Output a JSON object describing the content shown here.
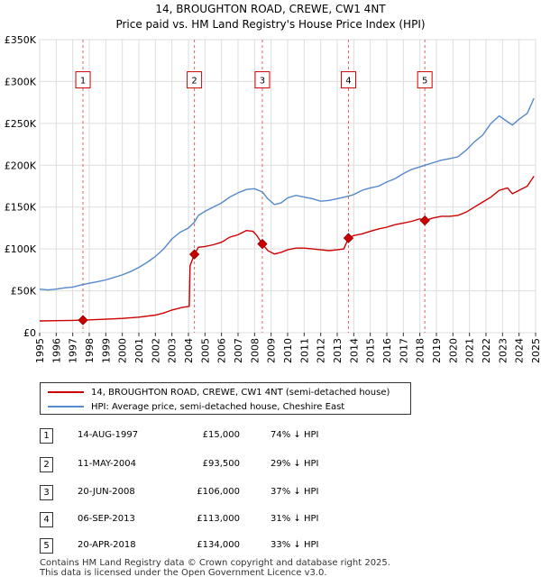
{
  "chart_data": {
    "type": "line",
    "title": "14, BROUGHTON ROAD, CREWE, CW1 4NT",
    "subtitle": "Price paid vs. HM Land Registry's House Price Index (HPI)",
    "xlim": [
      1995,
      2025
    ],
    "ylim": [
      0,
      350000
    ],
    "x_ticks": [
      "1995",
      "1996",
      "1997",
      "1998",
      "1999",
      "2000",
      "2001",
      "2002",
      "2003",
      "2004",
      "2005",
      "2006",
      "2007",
      "2008",
      "2009",
      "2010",
      "2011",
      "2012",
      "2013",
      "2014",
      "2015",
      "2016",
      "2017",
      "2018",
      "2019",
      "2020",
      "2021",
      "2022",
      "2023",
      "2024",
      "2025"
    ],
    "y_ticks": [
      {
        "value": 0,
        "label": "£0"
      },
      {
        "value": 50000,
        "label": "£50K"
      },
      {
        "value": 100000,
        "label": "£100K"
      },
      {
        "value": 150000,
        "label": "£150K"
      },
      {
        "value": 200000,
        "label": "£200K"
      },
      {
        "value": 250000,
        "label": "£250K"
      },
      {
        "value": 300000,
        "label": "£300K"
      },
      {
        "value": 350000,
        "label": "£350K"
      }
    ],
    "series": [
      {
        "name": "14, BROUGHTON ROAD, CREWE, CW1 4NT (semi-detached house)",
        "color": "#cc0000",
        "points": [
          [
            1995.0,
            14000
          ],
          [
            1996.0,
            14300
          ],
          [
            1997.0,
            14700
          ],
          [
            1997.62,
            15000
          ],
          [
            1998.0,
            15300
          ],
          [
            1999.0,
            16000
          ],
          [
            2000.0,
            17000
          ],
          [
            2001.0,
            18500
          ],
          [
            2002.0,
            21000
          ],
          [
            2002.5,
            23500
          ],
          [
            2003.0,
            27000
          ],
          [
            2003.6,
            30000
          ],
          [
            2004.05,
            31500
          ],
          [
            2004.1,
            80000
          ],
          [
            2004.36,
            93500
          ],
          [
            2004.6,
            102000
          ],
          [
            2005.0,
            103000
          ],
          [
            2005.5,
            105000
          ],
          [
            2006.0,
            108000
          ],
          [
            2006.5,
            114000
          ],
          [
            2007.0,
            117000
          ],
          [
            2007.5,
            122000
          ],
          [
            2007.9,
            121000
          ],
          [
            2008.1,
            117000
          ],
          [
            2008.47,
            106000
          ],
          [
            2008.8,
            98000
          ],
          [
            2009.2,
            94000
          ],
          [
            2009.6,
            96000
          ],
          [
            2010.0,
            99000
          ],
          [
            2010.5,
            101000
          ],
          [
            2011.0,
            101000
          ],
          [
            2011.5,
            100000
          ],
          [
            2012.0,
            99000
          ],
          [
            2012.5,
            98000
          ],
          [
            2013.0,
            99000
          ],
          [
            2013.4,
            100000
          ],
          [
            2013.68,
            113000
          ],
          [
            2014.0,
            116000
          ],
          [
            2014.5,
            118000
          ],
          [
            2015.0,
            121000
          ],
          [
            2015.5,
            124000
          ],
          [
            2016.0,
            126000
          ],
          [
            2016.5,
            129000
          ],
          [
            2017.0,
            131000
          ],
          [
            2017.5,
            133000
          ],
          [
            2018.0,
            136000
          ],
          [
            2018.3,
            134000
          ],
          [
            2018.8,
            137000
          ],
          [
            2019.3,
            139000
          ],
          [
            2019.8,
            139000
          ],
          [
            2020.3,
            140000
          ],
          [
            2020.8,
            144000
          ],
          [
            2021.3,
            150000
          ],
          [
            2021.8,
            156000
          ],
          [
            2022.3,
            162000
          ],
          [
            2022.8,
            170000
          ],
          [
            2023.3,
            173000
          ],
          [
            2023.6,
            166000
          ],
          [
            2024.0,
            170000
          ],
          [
            2024.5,
            175000
          ],
          [
            2024.9,
            187000
          ]
        ]
      },
      {
        "name": "HPI: Average price, semi-detached house, Cheshire East",
        "color": "#5588cc",
        "points": [
          [
            1995.0,
            52000
          ],
          [
            1995.5,
            51000
          ],
          [
            1996.0,
            52000
          ],
          [
            1996.5,
            53500
          ],
          [
            1997.0,
            54500
          ],
          [
            1997.62,
            57500
          ],
          [
            1998.0,
            59000
          ],
          [
            1998.5,
            61000
          ],
          [
            1999.0,
            63000
          ],
          [
            1999.5,
            66000
          ],
          [
            2000.0,
            69000
          ],
          [
            2000.5,
            73000
          ],
          [
            2001.0,
            78000
          ],
          [
            2001.5,
            84000
          ],
          [
            2002.0,
            91000
          ],
          [
            2002.5,
            100000
          ],
          [
            2003.0,
            112000
          ],
          [
            2003.5,
            120000
          ],
          [
            2004.0,
            125000
          ],
          [
            2004.36,
            132000
          ],
          [
            2004.6,
            140000
          ],
          [
            2005.0,
            145000
          ],
          [
            2005.5,
            150000
          ],
          [
            2006.0,
            155000
          ],
          [
            2006.5,
            162000
          ],
          [
            2007.0,
            167000
          ],
          [
            2007.5,
            171000
          ],
          [
            2008.0,
            172000
          ],
          [
            2008.47,
            168000
          ],
          [
            2008.8,
            160000
          ],
          [
            2009.2,
            153000
          ],
          [
            2009.6,
            155000
          ],
          [
            2010.0,
            161000
          ],
          [
            2010.5,
            164000
          ],
          [
            2011.0,
            162000
          ],
          [
            2011.5,
            160000
          ],
          [
            2012.0,
            157000
          ],
          [
            2012.5,
            158000
          ],
          [
            2013.0,
            160000
          ],
          [
            2013.68,
            163000
          ],
          [
            2014.0,
            165000
          ],
          [
            2014.5,
            170000
          ],
          [
            2015.0,
            173000
          ],
          [
            2015.5,
            175000
          ],
          [
            2016.0,
            180000
          ],
          [
            2016.5,
            184000
          ],
          [
            2017.0,
            190000
          ],
          [
            2017.5,
            195000
          ],
          [
            2018.0,
            198000
          ],
          [
            2018.3,
            200000
          ],
          [
            2018.8,
            203000
          ],
          [
            2019.3,
            206000
          ],
          [
            2019.8,
            208000
          ],
          [
            2020.3,
            210000
          ],
          [
            2020.8,
            218000
          ],
          [
            2021.3,
            228000
          ],
          [
            2021.8,
            236000
          ],
          [
            2022.3,
            250000
          ],
          [
            2022.8,
            259000
          ],
          [
            2023.3,
            252000
          ],
          [
            2023.6,
            248000
          ],
          [
            2024.0,
            255000
          ],
          [
            2024.5,
            262000
          ],
          [
            2024.9,
            280000
          ]
        ]
      }
    ],
    "sales": [
      {
        "id": "1",
        "x": 1997.62,
        "price": 15000
      },
      {
        "id": "2",
        "x": 2004.36,
        "price": 93500
      },
      {
        "id": "3",
        "x": 2008.47,
        "price": 106000
      },
      {
        "id": "4",
        "x": 2013.68,
        "price": 113000
      },
      {
        "id": "5",
        "x": 2018.3,
        "price": 134000
      }
    ],
    "marker_label_value": 302000
  },
  "legend": {
    "property": "14, BROUGHTON ROAD, CREWE, CW1 4NT (semi-detached house)",
    "hpi": "HPI: Average price, semi-detached house, Cheshire East",
    "property_color": "#cc0000",
    "hpi_color": "#5588cc"
  },
  "transactions": [
    {
      "num": "1",
      "date": "14-AUG-1997",
      "price": "£15,000",
      "hpi": "74% ↓ HPI"
    },
    {
      "num": "2",
      "date": "11-MAY-2004",
      "price": "£93,500",
      "hpi": "29% ↓ HPI"
    },
    {
      "num": "3",
      "date": "20-JUN-2008",
      "price": "£106,000",
      "hpi": "37% ↓ HPI"
    },
    {
      "num": "4",
      "date": "06-SEP-2013",
      "price": "£113,000",
      "hpi": "31% ↓ HPI"
    },
    {
      "num": "5",
      "date": "20-APR-2018",
      "price": "£134,000",
      "hpi": "33% ↓ HPI"
    }
  ],
  "footer": {
    "line1": "Contains HM Land Registry data © Crown copyright and database right 2025.",
    "line2": "This data is licensed under the Open Government Licence v3.0."
  }
}
